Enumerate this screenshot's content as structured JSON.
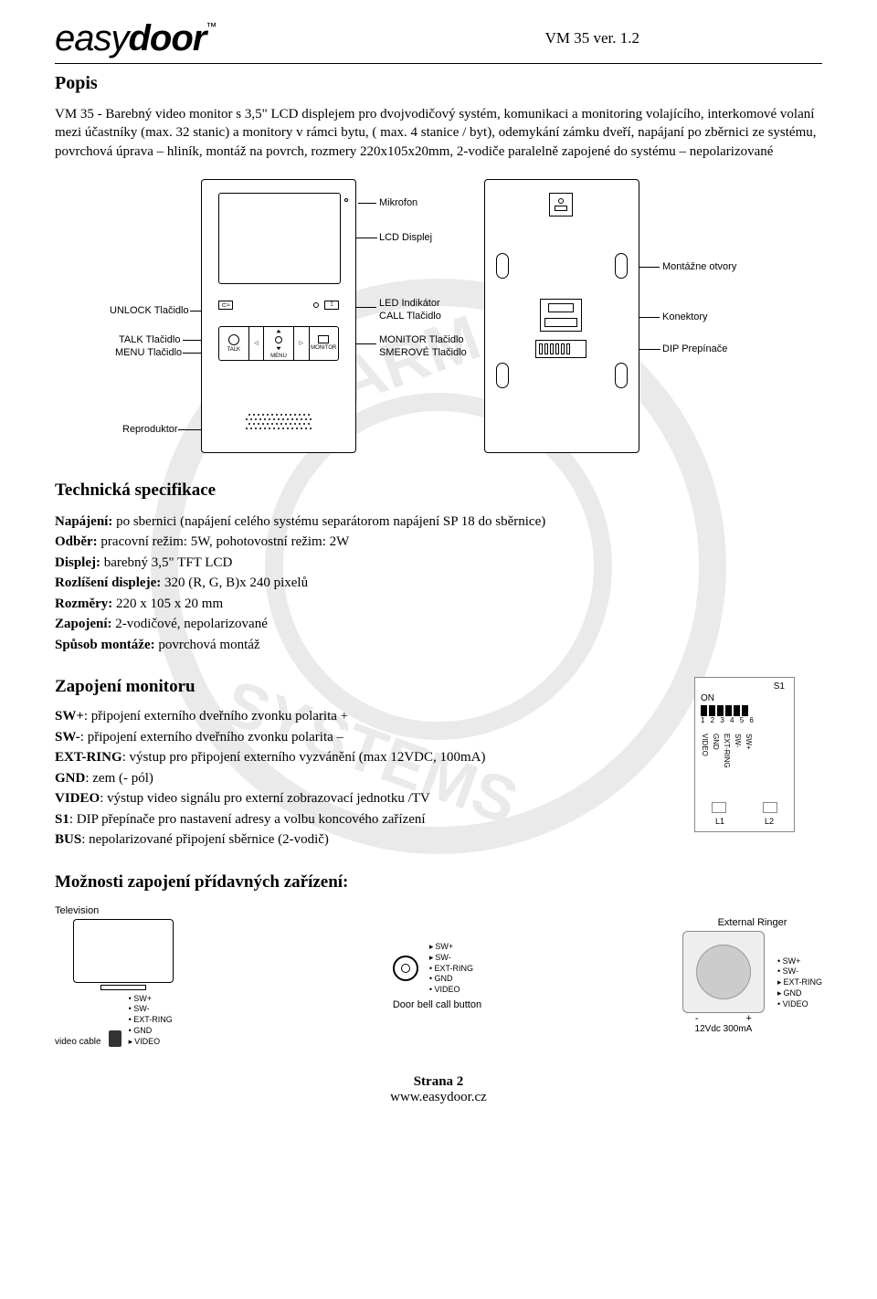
{
  "header": {
    "logo_part1": "easy",
    "logo_part2": "door",
    "logo_tm": "™",
    "doc_id": "VM 35 ver. 1.2"
  },
  "popis": {
    "title": "Popis",
    "body": "VM 35 - Barebný video monitor s 3,5\" LCD displejem pro dvojvodičový systém, komunikaci a monitoring volajícího, interkomové volaní mezi účastníky (max. 32 stanic) a monitory v rámci bytu, ( max. 4 stanice / byt), odemykání zámku dveří, napájaní po zběrnici ze systému, povrchová úprava – hliník, montáž na povrch, rozmery 220x105x20mm, 2-vodiče paralelně zapojené do systému – nepolarizované"
  },
  "front_labels": {
    "mikrofon": "Mikrofon",
    "lcd": "LCD Displej",
    "unlock": "UNLOCK Tlačidlo",
    "led": "LED Indikátor",
    "call": "CALL Tlačidlo",
    "talk": "TALK Tlačidlo",
    "menu": "MENU Tlačidlo",
    "monitor": "MONITOR Tlačidlo",
    "smerove": "SMEROVÉ Tlačidlo",
    "repro": "Reproduktor",
    "btn_talk": "TALK",
    "btn_menu": "MENU",
    "btn_monitor": "MONITOR"
  },
  "back_labels": {
    "mont": "Montážne otvory",
    "konekt": "Konektory",
    "dip": "DIP Prepínače"
  },
  "tech": {
    "title": "Technická specifikace",
    "lines": [
      {
        "label": "Napájení:",
        "value": " po sbernici (napájení celého systému separátorom napájení SP 18 do sběrnice)"
      },
      {
        "label": "Odběr:",
        "value": " pracovní režim: 5W, pohotovostní režim: 2W"
      },
      {
        "label": "Displej:",
        "value": " barebný 3,5\" TFT LCD"
      },
      {
        "label": "Rozlíšení displeje:",
        "value": " 320 (R, G, B)x 240 pixelů"
      },
      {
        "label": "Rozměry:",
        "value": " 220 x 105 x 20 mm"
      },
      {
        "label": "Zapojení:",
        "value": " 2-vodičové, nepolarizované"
      },
      {
        "label": "Spůsob montáže:",
        "value": " povrchová montáž"
      }
    ]
  },
  "zapojeni": {
    "title": "Zapojení monitoru",
    "lines": [
      {
        "label": "SW+",
        "value": ": připojení externího dveřního zvonku polarita +"
      },
      {
        "label": "SW-",
        "value": ": připojení externího dveřního zvonku polarita –"
      },
      {
        "label": "EXT-RING",
        "value": ": výstup pro připojení externího vyzvánění (max 12VDC, 100mA)"
      },
      {
        "label": "GND",
        "value": ": zem (- pól)"
      },
      {
        "label": "VIDEO",
        "value": ": výstup video signálu pro externí zobrazovací jednotku /TV"
      },
      {
        "label": "S1",
        "value": ": DIP přepínače pro nastavení adresy a volbu koncového zařízení"
      },
      {
        "label": "BUS",
        "value": ": nepolarizované připojení sběrnice (2-vodič)"
      }
    ]
  },
  "s1_module": {
    "title": "S1",
    "on": "ON",
    "nums": "1 2 3 4 5 6",
    "pins": [
      "SW+",
      "SW-",
      "EXT-RING",
      "GND",
      "VIDEO"
    ],
    "l1": "L1",
    "l2": "L2"
  },
  "moznosti": {
    "title": "Možnosti zapojení přídavných zařízení:"
  },
  "bottom": {
    "tv_label": "Television",
    "video_cable": "video cable",
    "tv_pins": [
      "SW+",
      "SW-",
      "EXT-RING",
      "GND",
      "VIDEO"
    ],
    "doorbell": "Door bell call button",
    "doorbell_pins": [
      "SW+",
      "SW-",
      "EXT-RING",
      "GND",
      "VIDEO"
    ],
    "ext_ringer": "External Ringer",
    "minus": "-",
    "plus": "+",
    "volt": "12Vdc 300mA",
    "ringer_pins": [
      "SW+",
      "SW-",
      "EXT-RING",
      "GND",
      "VIDEO"
    ]
  },
  "footer": {
    "page": "Strana 2",
    "url": "www.easydoor.cz"
  }
}
